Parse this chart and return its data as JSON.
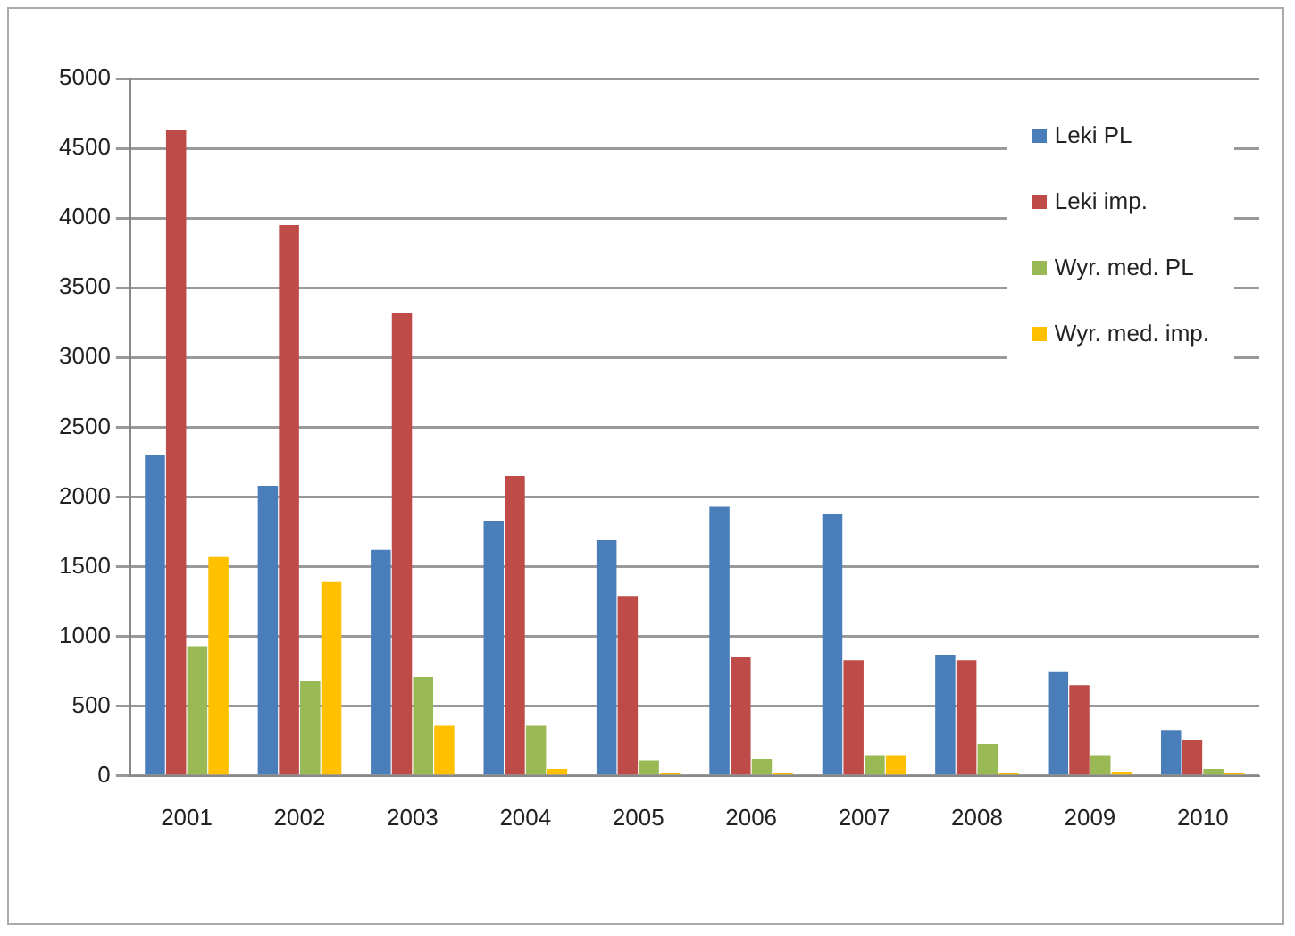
{
  "chart_data": {
    "type": "bar",
    "categories": [
      "2001",
      "2002",
      "2003",
      "2004",
      "2005",
      "2006",
      "2007",
      "2008",
      "2009",
      "2010"
    ],
    "series": [
      {
        "name": "Leki PL",
        "color": "#4a7ebb",
        "values": [
          2300,
          2080,
          1620,
          1830,
          1690,
          1930,
          1880,
          870,
          750,
          330
        ]
      },
      {
        "name": "Leki imp.",
        "color": "#be4b48",
        "values": [
          4630,
          3950,
          3320,
          2150,
          1290,
          850,
          830,
          830,
          650,
          260
        ]
      },
      {
        "name": "Wyr. med. PL",
        "color": "#98b954",
        "values": [
          930,
          680,
          710,
          360,
          110,
          120,
          150,
          230,
          150,
          50
        ]
      },
      {
        "name": "Wyr. med. imp.",
        "color": "#ffc000",
        "values": [
          1570,
          1390,
          360,
          50,
          20,
          20,
          150,
          20,
          30,
          20
        ]
      }
    ],
    "ylim": [
      0,
      5000
    ],
    "yticks": [
      0,
      500,
      1000,
      1500,
      2000,
      2500,
      3000,
      3500,
      4000,
      4500,
      5000
    ],
    "grid": "y",
    "legend": "top right"
  }
}
